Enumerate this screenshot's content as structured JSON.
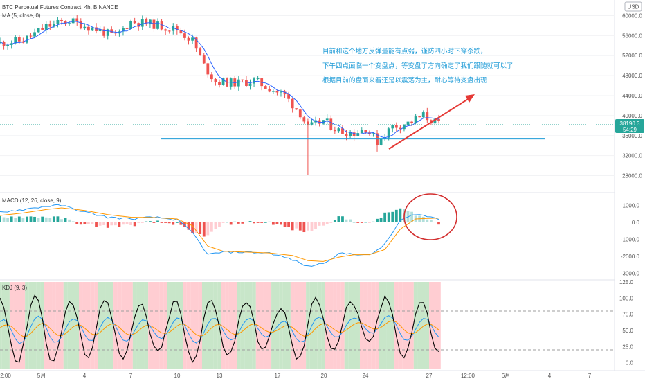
{
  "header": {
    "symbol_line": "BTC Perpetual Futures Contract, 4h, BINANCE",
    "ma_line": "MA (5, close, 0)",
    "currency_badge": "USD"
  },
  "price_tag": {
    "value": "38190.3",
    "countdown": "54:29"
  },
  "annotations": [
    "目前和这个地方反弹量能有点弱，谨防四小时下穿杀跌，",
    "下午四点面临一个变盘点，等变盘了方向确定了我们跟随就可以了",
    "根据目前的盘面来看还是以震荡为主，耐心等待变盘出现"
  ],
  "panes": {
    "macd_label": "MACD (12, 26, close, 9)",
    "kdj_label": "KDJ (9, 3)"
  },
  "colors": {
    "up": "#26a69a",
    "down": "#ef5350",
    "ma": "#2962ff",
    "support_line": "#1e9bd7",
    "arrow": "#e53935",
    "circle": "#d32f2f",
    "macd_line": "#2196f3",
    "signal_line": "#ff9800",
    "k_line": "#2196f3",
    "d_line": "#ff9800",
    "j_line": "#000000",
    "kdj_bull_bg": "#c8e6c9",
    "kdj_bear_bg": "#ffcdd2"
  },
  "chart_data": [
    {
      "type": "candlestick",
      "pane": "price",
      "y_ticks": [
        "60000.0",
        "56000.0",
        "52000.0",
        "48000.0",
        "44000.0",
        "40000.0",
        "36000.0",
        "32000.0",
        "28000.0"
      ],
      "ylim": [
        26000,
        62000
      ],
      "x_ticks": [
        "2:00",
        "5月",
        "4",
        "7",
        "10",
        "13",
        "17",
        "20",
        "24",
        "27",
        "12:00",
        "6月",
        "4",
        "7"
      ],
      "last_price": 38190.3,
      "support_level": 35400,
      "path_points": [
        [
          0,
          54500
        ],
        [
          6,
          55000
        ],
        [
          12,
          57800
        ],
        [
          18,
          59000
        ],
        [
          24,
          57500
        ],
        [
          30,
          55800
        ],
        [
          34,
          58800
        ],
        [
          40,
          58200
        ],
        [
          46,
          57200
        ],
        [
          50,
          55000
        ],
        [
          53,
          50000
        ],
        [
          56,
          46800
        ],
        [
          62,
          46500
        ],
        [
          66,
          47000
        ],
        [
          70,
          45500
        ],
        [
          74,
          44000
        ],
        [
          78,
          40500
        ],
        [
          80,
          37500
        ],
        [
          84,
          39000
        ],
        [
          88,
          37000
        ],
        [
          92,
          36500
        ],
        [
          95,
          37500
        ],
        [
          98,
          34800
        ],
        [
          102,
          37800
        ],
        [
          106,
          38500
        ],
        [
          110,
          40000
        ],
        [
          114,
          38200
        ]
      ]
    },
    {
      "type": "macd",
      "pane": "macd",
      "y_ticks": [
        "1000.0",
        "0.0",
        "-1000.0",
        "-2000.0",
        "-3000.0"
      ],
      "ylim": [
        -3300,
        1500
      ],
      "macd": [
        [
          0,
          600
        ],
        [
          6,
          750
        ],
        [
          12,
          950
        ],
        [
          16,
          1000
        ],
        [
          22,
          600
        ],
        [
          28,
          300
        ],
        [
          34,
          200
        ],
        [
          40,
          300
        ],
        [
          46,
          150
        ],
        [
          50,
          -600
        ],
        [
          54,
          -1900
        ],
        [
          58,
          -1750
        ],
        [
          64,
          -1750
        ],
        [
          70,
          -1800
        ],
        [
          76,
          -2200
        ],
        [
          80,
          -2600
        ],
        [
          84,
          -2400
        ],
        [
          88,
          -1850
        ],
        [
          92,
          -1850
        ],
        [
          96,
          -1950
        ],
        [
          100,
          -1300
        ],
        [
          104,
          100
        ],
        [
          108,
          500
        ],
        [
          114,
          200
        ]
      ],
      "signal": [
        [
          0,
          400
        ],
        [
          6,
          550
        ],
        [
          12,
          750
        ],
        [
          16,
          850
        ],
        [
          22,
          700
        ],
        [
          28,
          450
        ],
        [
          34,
          300
        ],
        [
          40,
          280
        ],
        [
          46,
          200
        ],
        [
          50,
          -200
        ],
        [
          54,
          -1400
        ],
        [
          58,
          -1700
        ],
        [
          64,
          -1750
        ],
        [
          70,
          -1800
        ],
        [
          76,
          -1950
        ],
        [
          80,
          -2250
        ],
        [
          84,
          -2300
        ],
        [
          88,
          -2050
        ],
        [
          92,
          -1900
        ],
        [
          96,
          -1900
        ],
        [
          100,
          -1600
        ],
        [
          104,
          -400
        ],
        [
          108,
          200
        ],
        [
          114,
          250
        ]
      ]
    },
    {
      "type": "kdj",
      "pane": "kdj",
      "y_ticks": [
        "125.0",
        "100.0",
        "75.0",
        "50.0",
        "25.0",
        "0.0"
      ],
      "ylim": [
        -10,
        125
      ],
      "guides": [
        80,
        20
      ],
      "j_cycles": [
        100,
        0,
        105,
        2,
        95,
        10,
        100,
        5,
        90,
        15,
        95,
        0,
        100,
        10,
        95,
        20,
        85,
        5,
        100,
        20,
        95,
        30,
        100,
        10,
        95,
        15
      ]
    }
  ]
}
